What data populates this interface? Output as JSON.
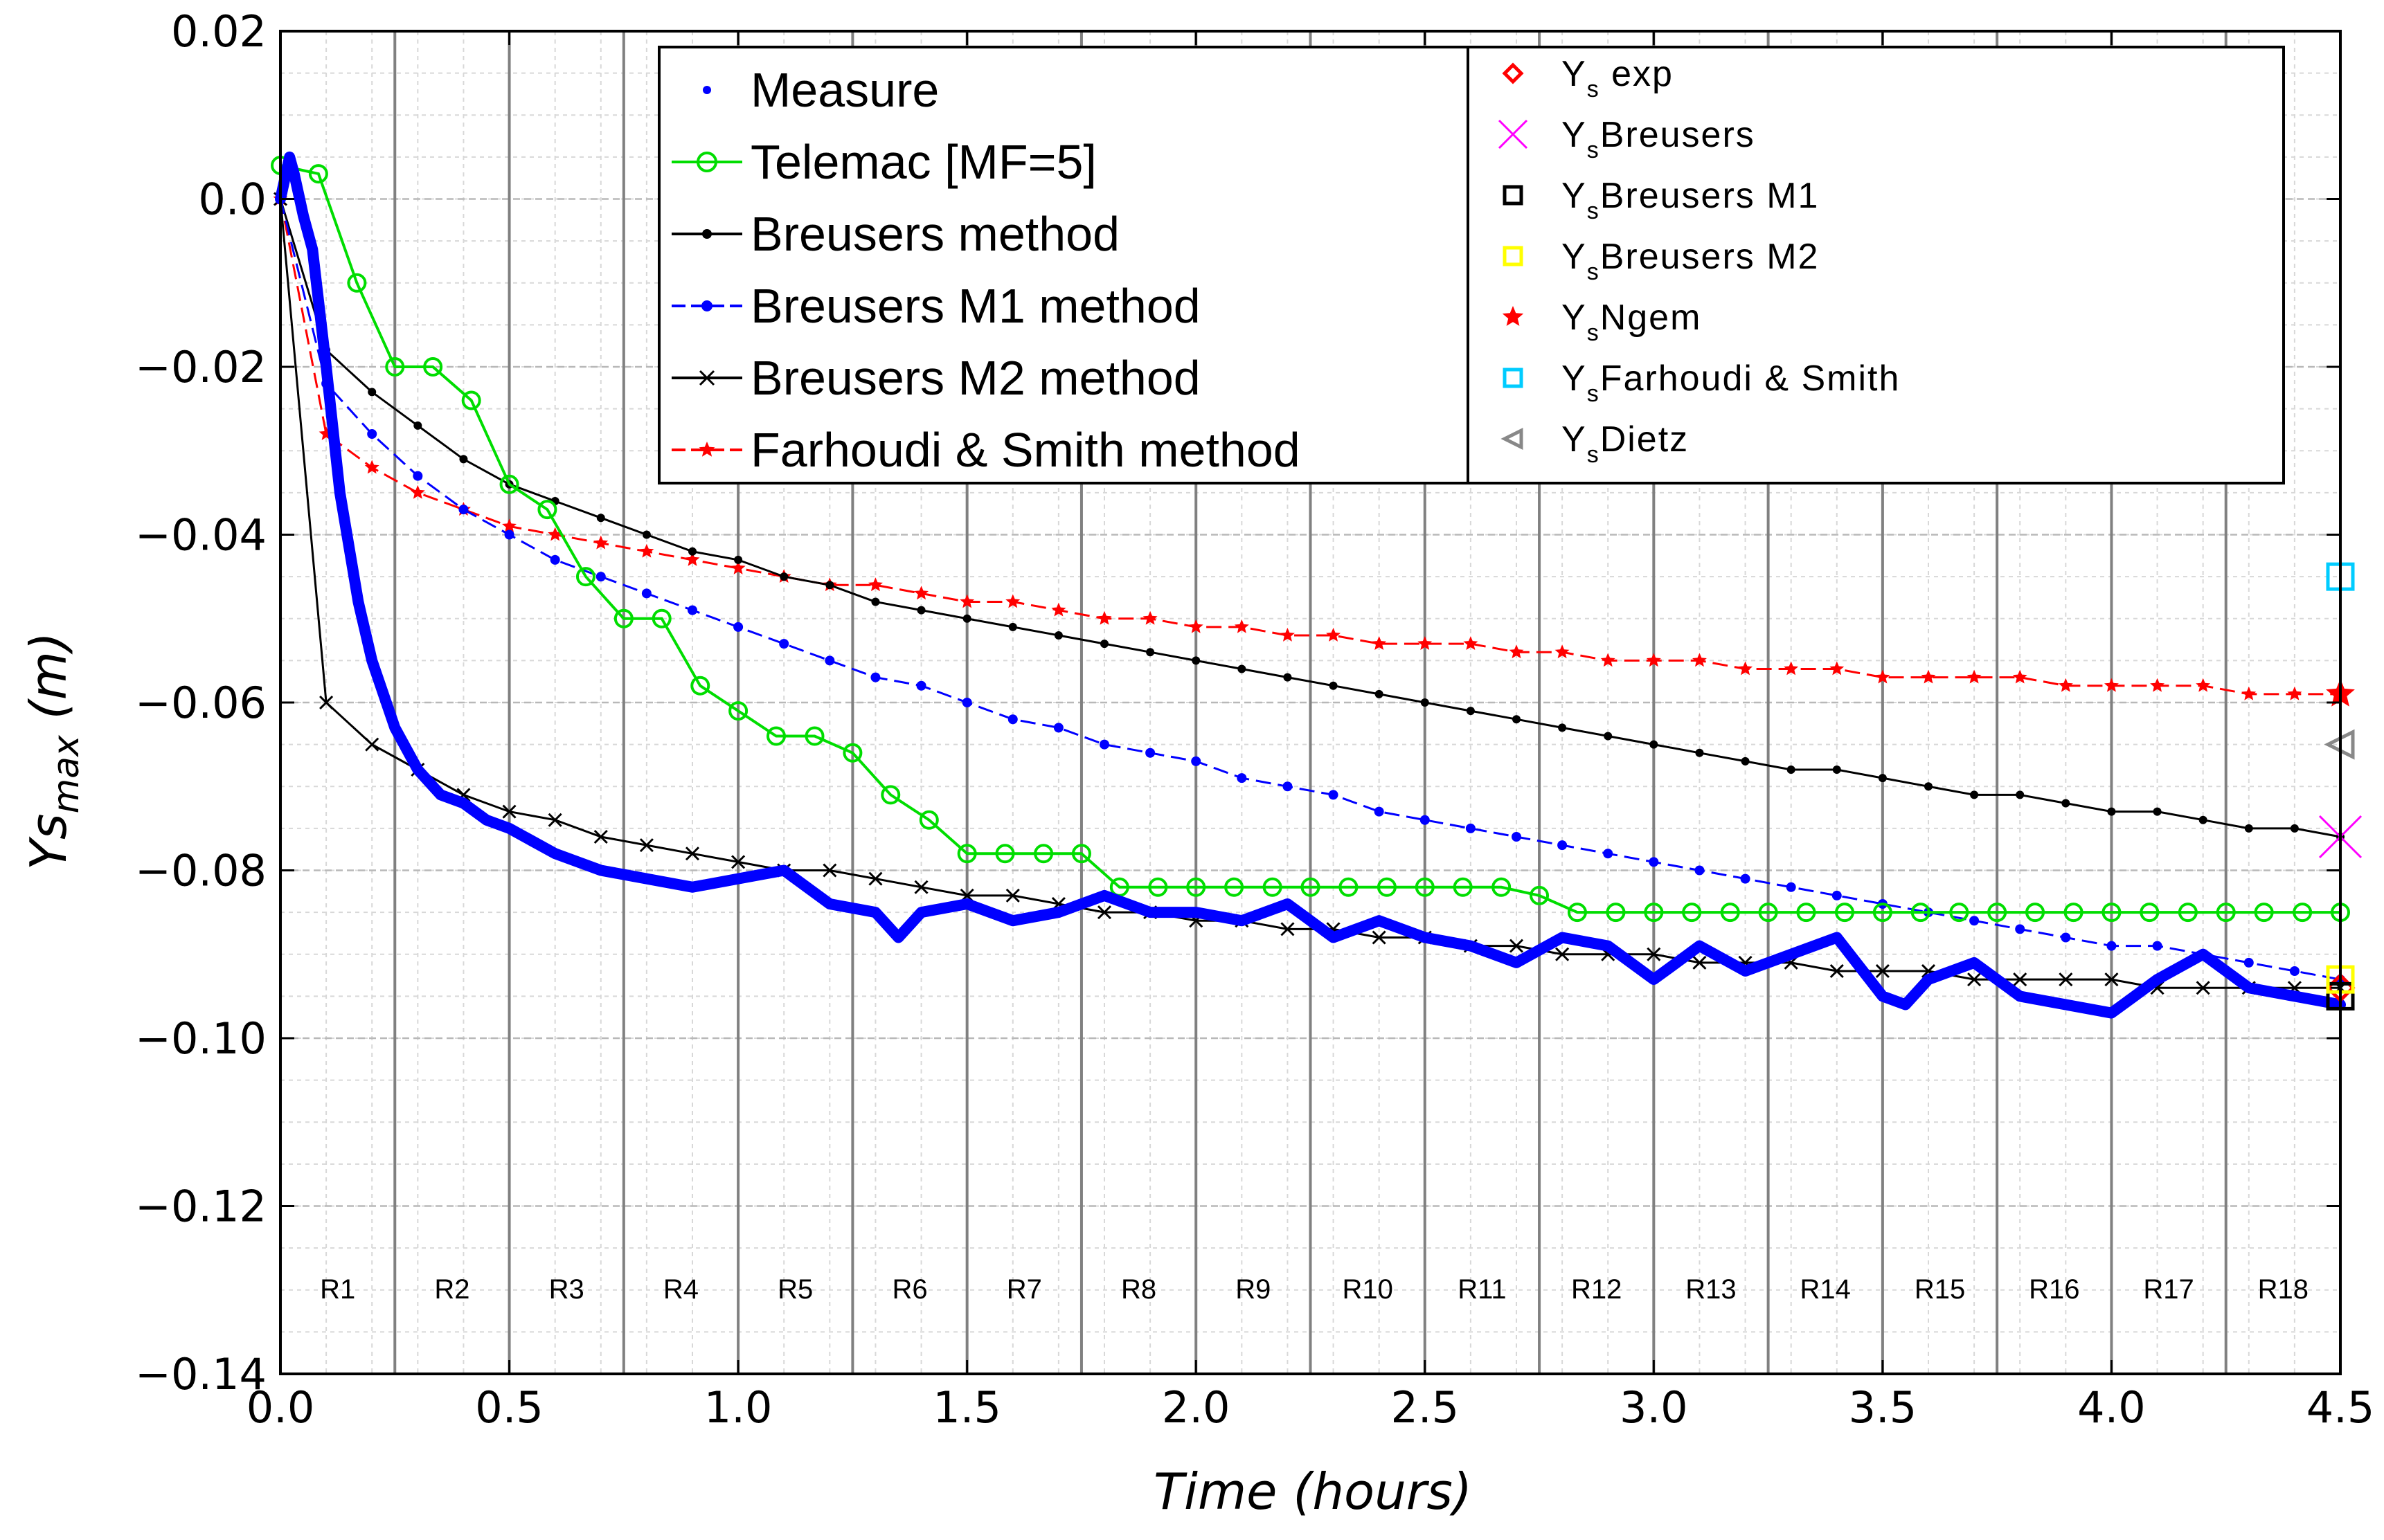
{
  "chart_data": {
    "type": "line",
    "xlabel": "Time (hours)",
    "ylabel": "Ys",
    "ylabel_sub": "max",
    "ylabel_unit": " (m)",
    "xlim": [
      0,
      4.5
    ],
    "ylim": [
      -0.14,
      0.02
    ],
    "grid": true,
    "x_ticks": [
      {
        "value": 0.0,
        "label": "0.0"
      },
      {
        "value": 0.5,
        "label": "0.5"
      },
      {
        "value": 1.0,
        "label": "1.0"
      },
      {
        "value": 1.5,
        "label": "1.5"
      },
      {
        "value": 2.0,
        "label": "2.0"
      },
      {
        "value": 2.5,
        "label": "2.5"
      },
      {
        "value": 3.0,
        "label": "3.0"
      },
      {
        "value": 3.5,
        "label": "3.5"
      },
      {
        "value": 4.0,
        "label": "4.0"
      },
      {
        "value": 4.5,
        "label": "4.5"
      }
    ],
    "y_ticks": [
      {
        "value": 0.02,
        "label": "0.02"
      },
      {
        "value": 0.0,
        "label": "0.0"
      },
      {
        "value": -0.02,
        "label": "−0.02"
      },
      {
        "value": -0.04,
        "label": "−0.04"
      },
      {
        "value": -0.06,
        "label": "−0.06"
      },
      {
        "value": -0.08,
        "label": "−0.08"
      },
      {
        "value": -0.1,
        "label": "−0.10"
      },
      {
        "value": -0.12,
        "label": "−0.12"
      },
      {
        "value": -0.14,
        "label": "−0.14"
      }
    ],
    "region_boundaries": [
      0.25,
      0.5,
      0.75,
      1.0,
      1.25,
      1.5,
      1.75,
      2.0,
      2.25,
      2.5,
      2.75,
      3.0,
      3.25,
      3.5,
      3.75,
      4.0,
      4.25
    ],
    "region_label_y": -0.131,
    "regions": [
      "R1",
      "R2",
      "R3",
      "R4",
      "R5",
      "R6",
      "R7",
      "R8",
      "R9",
      "R10",
      "R11",
      "R12",
      "R13",
      "R14",
      "R15",
      "R16",
      "R17",
      "R18"
    ],
    "series": [
      {
        "name": "Measure",
        "color": "#0000ff",
        "style": "measure",
        "x": [
          0.0,
          0.02,
          0.03,
          0.05,
          0.07,
          0.1,
          0.13,
          0.17,
          0.2,
          0.25,
          0.3,
          0.35,
          0.4,
          0.45,
          0.5,
          0.6,
          0.7,
          0.8,
          0.9,
          1.0,
          1.1,
          1.2,
          1.3,
          1.35,
          1.4,
          1.5,
          1.6,
          1.7,
          1.8,
          1.9,
          2.0,
          2.1,
          2.2,
          2.3,
          2.4,
          2.5,
          2.6,
          2.7,
          2.8,
          2.9,
          3.0,
          3.05,
          3.1,
          3.2,
          3.3,
          3.4,
          3.5,
          3.55,
          3.6,
          3.7,
          3.8,
          3.9,
          4.0,
          4.05,
          4.1,
          4.2,
          4.3,
          4.4,
          4.5
        ],
        "y": [
          0.0,
          0.005,
          0.003,
          -0.002,
          -0.006,
          -0.02,
          -0.035,
          -0.048,
          -0.055,
          -0.063,
          -0.068,
          -0.071,
          -0.072,
          -0.074,
          -0.075,
          -0.078,
          -0.08,
          -0.081,
          -0.082,
          -0.081,
          -0.08,
          -0.084,
          -0.085,
          -0.088,
          -0.085,
          -0.084,
          -0.086,
          -0.085,
          -0.083,
          -0.085,
          -0.085,
          -0.086,
          -0.084,
          -0.088,
          -0.086,
          -0.088,
          -0.089,
          -0.091,
          -0.088,
          -0.089,
          -0.093,
          -0.091,
          -0.089,
          -0.092,
          -0.09,
          -0.088,
          -0.095,
          -0.096,
          -0.093,
          -0.091,
          -0.095,
          -0.096,
          -0.097,
          -0.095,
          -0.093,
          -0.09,
          -0.094,
          -0.095,
          -0.096
        ]
      },
      {
        "name": "Telemac [MF=5]",
        "color": "#00dd00",
        "style": "circle-line",
        "x": [
          0.0,
          0.083,
          0.167,
          0.25,
          0.333,
          0.417,
          0.5,
          0.583,
          0.667,
          0.75,
          0.833,
          0.917,
          1.0,
          1.083,
          1.167,
          1.25,
          1.333,
          1.417,
          1.5,
          1.583,
          1.667,
          1.75,
          1.833,
          1.917,
          2.0,
          2.083,
          2.167,
          2.25,
          2.333,
          2.417,
          2.5,
          2.583,
          2.667,
          2.75,
          2.833,
          2.917,
          3.0,
          3.083,
          3.167,
          3.25,
          3.333,
          3.417,
          3.5,
          3.583,
          3.667,
          3.75,
          3.833,
          3.917,
          4.0,
          4.083,
          4.167,
          4.25,
          4.333,
          4.417,
          4.5
        ],
        "y": [
          0.004,
          0.003,
          -0.01,
          -0.02,
          -0.02,
          -0.024,
          -0.034,
          -0.037,
          -0.045,
          -0.05,
          -0.05,
          -0.058,
          -0.061,
          -0.064,
          -0.064,
          -0.066,
          -0.071,
          -0.074,
          -0.078,
          -0.078,
          -0.078,
          -0.078,
          -0.082,
          -0.082,
          -0.082,
          -0.082,
          -0.082,
          -0.082,
          -0.082,
          -0.082,
          -0.082,
          -0.082,
          -0.082,
          -0.083,
          -0.085,
          -0.085,
          -0.085,
          -0.085,
          -0.085,
          -0.085,
          -0.085,
          -0.085,
          -0.085,
          -0.085,
          -0.085,
          -0.085,
          -0.085,
          -0.085,
          -0.085,
          -0.085,
          -0.085,
          -0.085,
          -0.085,
          -0.085,
          -0.085
        ]
      },
      {
        "name": "Breusers method",
        "color": "#000000",
        "style": "dot-line",
        "x": [
          0.0,
          0.1,
          0.2,
          0.3,
          0.4,
          0.5,
          0.6,
          0.7,
          0.8,
          0.9,
          1.0,
          1.1,
          1.2,
          1.3,
          1.4,
          1.5,
          1.6,
          1.7,
          1.8,
          1.9,
          2.0,
          2.1,
          2.2,
          2.3,
          2.4,
          2.5,
          2.6,
          2.7,
          2.8,
          2.9,
          3.0,
          3.1,
          3.2,
          3.3,
          3.4,
          3.5,
          3.6,
          3.7,
          3.8,
          3.9,
          4.0,
          4.1,
          4.2,
          4.3,
          4.4,
          4.5
        ],
        "y": [
          0.0,
          -0.018,
          -0.023,
          -0.027,
          -0.031,
          -0.034,
          -0.036,
          -0.038,
          -0.04,
          -0.042,
          -0.043,
          -0.045,
          -0.046,
          -0.048,
          -0.049,
          -0.05,
          -0.051,
          -0.052,
          -0.053,
          -0.054,
          -0.055,
          -0.056,
          -0.057,
          -0.058,
          -0.059,
          -0.06,
          -0.061,
          -0.062,
          -0.063,
          -0.064,
          -0.065,
          -0.066,
          -0.067,
          -0.068,
          -0.068,
          -0.069,
          -0.07,
          -0.071,
          -0.071,
          -0.072,
          -0.073,
          -0.073,
          -0.074,
          -0.075,
          -0.075,
          -0.076
        ]
      },
      {
        "name": "Breusers M1 method",
        "color": "#0000ff",
        "style": "dash-dot",
        "x": [
          0.0,
          0.1,
          0.2,
          0.3,
          0.4,
          0.5,
          0.6,
          0.7,
          0.8,
          0.9,
          1.0,
          1.1,
          1.2,
          1.3,
          1.4,
          1.5,
          1.6,
          1.7,
          1.8,
          1.9,
          2.0,
          2.1,
          2.2,
          2.3,
          2.4,
          2.5,
          2.6,
          2.7,
          2.8,
          2.9,
          3.0,
          3.1,
          3.2,
          3.3,
          3.4,
          3.5,
          3.6,
          3.7,
          3.8,
          3.9,
          4.0,
          4.1,
          4.2,
          4.3,
          4.4,
          4.5
        ],
        "y": [
          0.0,
          -0.022,
          -0.028,
          -0.033,
          -0.037,
          -0.04,
          -0.043,
          -0.045,
          -0.047,
          -0.049,
          -0.051,
          -0.053,
          -0.055,
          -0.057,
          -0.058,
          -0.06,
          -0.062,
          -0.063,
          -0.065,
          -0.066,
          -0.067,
          -0.069,
          -0.07,
          -0.071,
          -0.073,
          -0.074,
          -0.075,
          -0.076,
          -0.077,
          -0.078,
          -0.079,
          -0.08,
          -0.081,
          -0.082,
          -0.083,
          -0.084,
          -0.085,
          -0.086,
          -0.087,
          -0.088,
          -0.089,
          -0.089,
          -0.09,
          -0.091,
          -0.092,
          -0.093
        ]
      },
      {
        "name": "Breusers M2 method",
        "color": "#000000",
        "style": "x-line",
        "x": [
          0.0,
          0.1,
          0.2,
          0.3,
          0.4,
          0.5,
          0.6,
          0.7,
          0.8,
          0.9,
          1.0,
          1.1,
          1.2,
          1.3,
          1.4,
          1.5,
          1.6,
          1.7,
          1.8,
          1.9,
          2.0,
          2.1,
          2.2,
          2.3,
          2.4,
          2.5,
          2.6,
          2.7,
          2.8,
          2.9,
          3.0,
          3.1,
          3.2,
          3.3,
          3.4,
          3.5,
          3.6,
          3.7,
          3.8,
          3.9,
          4.0,
          4.1,
          4.2,
          4.3,
          4.4,
          4.5
        ],
        "y": [
          0.0,
          -0.06,
          -0.065,
          -0.068,
          -0.071,
          -0.073,
          -0.074,
          -0.076,
          -0.077,
          -0.078,
          -0.079,
          -0.08,
          -0.08,
          -0.081,
          -0.082,
          -0.083,
          -0.083,
          -0.084,
          -0.085,
          -0.085,
          -0.086,
          -0.086,
          -0.087,
          -0.087,
          -0.088,
          -0.088,
          -0.089,
          -0.089,
          -0.09,
          -0.09,
          -0.09,
          -0.091,
          -0.091,
          -0.091,
          -0.092,
          -0.092,
          -0.092,
          -0.093,
          -0.093,
          -0.093,
          -0.093,
          -0.094,
          -0.094,
          -0.094,
          -0.094,
          -0.094
        ]
      },
      {
        "name": "Farhoudi & Smith method",
        "color": "#ff0000",
        "style": "star-dash",
        "x": [
          0.0,
          0.1,
          0.2,
          0.3,
          0.4,
          0.5,
          0.6,
          0.7,
          0.8,
          0.9,
          1.0,
          1.1,
          1.2,
          1.3,
          1.4,
          1.5,
          1.6,
          1.7,
          1.8,
          1.9,
          2.0,
          2.1,
          2.2,
          2.3,
          2.4,
          2.5,
          2.6,
          2.7,
          2.8,
          2.9,
          3.0,
          3.1,
          3.2,
          3.3,
          3.4,
          3.5,
          3.6,
          3.7,
          3.8,
          3.9,
          4.0,
          4.1,
          4.2,
          4.3,
          4.4,
          4.5
        ],
        "y": [
          0.0,
          -0.028,
          -0.032,
          -0.035,
          -0.037,
          -0.039,
          -0.04,
          -0.041,
          -0.042,
          -0.043,
          -0.044,
          -0.045,
          -0.046,
          -0.046,
          -0.047,
          -0.048,
          -0.048,
          -0.049,
          -0.05,
          -0.05,
          -0.051,
          -0.051,
          -0.052,
          -0.052,
          -0.053,
          -0.053,
          -0.053,
          -0.054,
          -0.054,
          -0.055,
          -0.055,
          -0.055,
          -0.056,
          -0.056,
          -0.056,
          -0.057,
          -0.057,
          -0.057,
          -0.057,
          -0.058,
          -0.058,
          -0.058,
          -0.058,
          -0.059,
          -0.059,
          -0.059
        ]
      }
    ],
    "end_markers": [
      {
        "name": "Ys exp",
        "label_main": "Y",
        "label_sub": "s",
        "label_rest": " exp",
        "x": 4.5,
        "y": -0.094,
        "marker": "diamond",
        "color": "#ff0000"
      },
      {
        "name": "YsBreusers",
        "label_main": "Y",
        "label_sub": "s",
        "label_rest": "Breusers",
        "x": 4.5,
        "y": -0.076,
        "marker": "x",
        "color": "#ff00ff"
      },
      {
        "name": "YsBreusers M1",
        "label_main": "Y",
        "label_sub": "s",
        "label_rest": "Breusers M1",
        "x": 4.5,
        "y": -0.095,
        "marker": "square",
        "color": "#000000"
      },
      {
        "name": "YsBreusers M2",
        "label_main": "Y",
        "label_sub": "s",
        "label_rest": "Breusers M2",
        "x": 4.5,
        "y": -0.093,
        "marker": "square",
        "color": "#ffff00"
      },
      {
        "name": "YsNgem",
        "label_main": "Y",
        "label_sub": "s",
        "label_rest": "Ngem",
        "x": 4.5,
        "y": -0.059,
        "marker": "star",
        "color": "#ff0000"
      },
      {
        "name": "YsFarhoudi & Smith",
        "label_main": "Y",
        "label_sub": "s",
        "label_rest": "Farhoudi & Smith",
        "x": 4.5,
        "y": -0.045,
        "marker": "square",
        "color": "#00ccff"
      },
      {
        "name": "YsDietz",
        "label_main": "Y",
        "label_sub": "s",
        "label_rest": "Dietz",
        "x": 4.5,
        "y": -0.065,
        "marker": "triangle-left",
        "color": "#888888"
      }
    ],
    "legend_position": "top"
  }
}
